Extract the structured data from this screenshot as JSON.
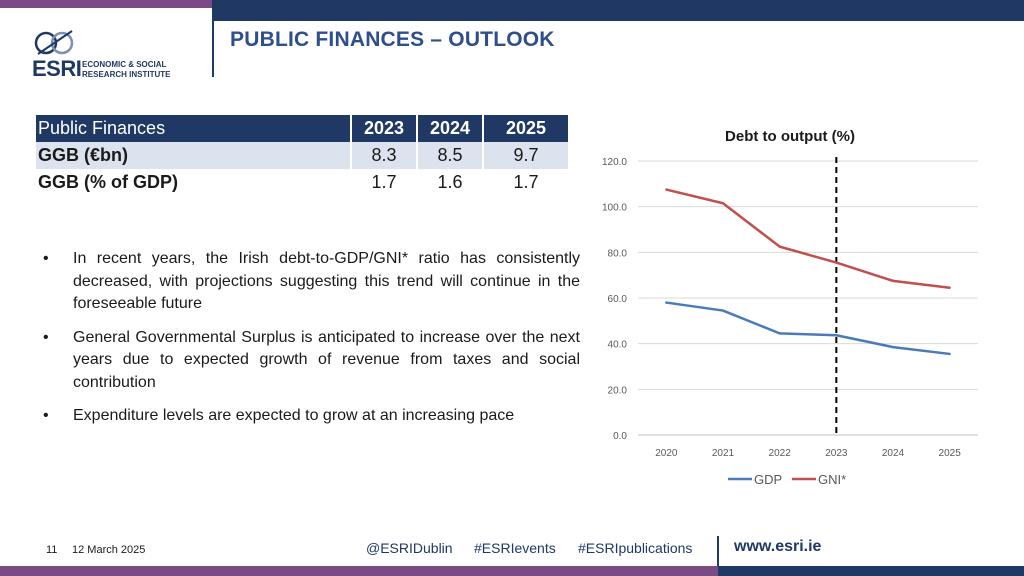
{
  "header": {
    "title": "PUBLIC FINANCES – OUTLOOK"
  },
  "logo": {
    "name": "ESRI",
    "line1": "ECONOMIC & SOCIAL",
    "line2": "RESEARCH INSTITUTE"
  },
  "table": {
    "header": [
      "Public Finances",
      "2023",
      "2024",
      "2025"
    ],
    "rows": [
      [
        "GGB (€bn)",
        "8.3",
        "8.5",
        "9.7"
      ],
      [
        "GGB (% of GDP)",
        "1.7",
        "1.6",
        "1.7"
      ]
    ]
  },
  "bullets": [
    "In recent years, the Irish debt-to-GDP/GNI* ratio has consistently decreased, with projections suggesting this trend will continue in the foreseeable future",
    "General Governmental Surplus is anticipated to increase over the next years due to expected growth of revenue from taxes and social contribution",
    "Expenditure levels are expected to grow at an increasing pace"
  ],
  "chart_data": {
    "type": "line",
    "title": "Debt to output (%)",
    "x": [
      "2020",
      "2021",
      "2022",
      "2023",
      "2024",
      "2025"
    ],
    "series": [
      {
        "name": "GDP",
        "values": [
          58.0,
          54.5,
          44.5,
          43.7,
          38.5,
          35.5
        ],
        "color": "#4a7ab8"
      },
      {
        "name": "GNI*",
        "values": [
          107.5,
          101.5,
          82.5,
          75.5,
          67.5,
          64.5
        ],
        "color": "#c0504d"
      }
    ],
    "yticks": [
      "0.0",
      "20.0",
      "40.0",
      "60.0",
      "80.0",
      "100.0",
      "120.0"
    ],
    "ylim": [
      0,
      120
    ],
    "marker_line_at": "2023",
    "legend": "bottom"
  },
  "footer": {
    "page": "11",
    "date": "12 March 2025",
    "social1": "@ESRIDublin",
    "social2": "#ESRIevents",
    "social3": "#ESRIpublications",
    "website": "www.esri.ie"
  },
  "colors": {
    "navy": "#1f3864",
    "purple": "#7a4a86",
    "title": "#2e4e8c"
  }
}
